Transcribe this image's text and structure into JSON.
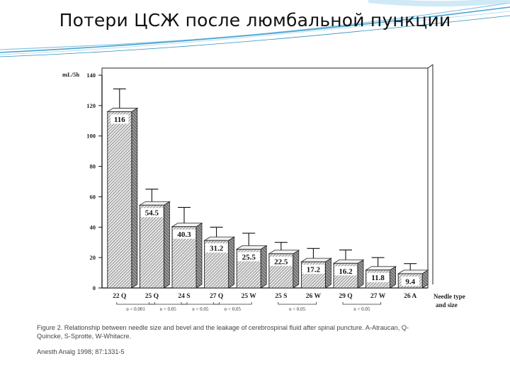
{
  "slide": {
    "title": "Потери ЦСЖ после люмбальной пункции",
    "accent_color": "#2d8fbf"
  },
  "figure": {
    "caption_line1": "Figure 2. Relationship between needle size and bevel and the leakage of cerebrospinal fluid after spinal puncture. A-Atraucan, Q-",
    "caption_line2": "Quincke, S-Sprotte, W-Whitacre.",
    "source": "Anesth Analg 1998; 87:1331-5"
  },
  "chart_data": {
    "type": "bar",
    "ylabel": "mL/5h",
    "xlabel_line1": "Needle type",
    "xlabel_line2": "and size",
    "ylim": [
      0,
      140
    ],
    "yticks": [
      0,
      20,
      40,
      60,
      80,
      100,
      120,
      140
    ],
    "categories": [
      "22 Q",
      "25 Q",
      "24 S",
      "27 Q",
      "25 W",
      "25 S",
      "26 W",
      "29 Q",
      "27 W",
      "26 A"
    ],
    "values": [
      116,
      54.5,
      40.3,
      31.2,
      25.5,
      22.5,
      17.2,
      16.2,
      11.8,
      9.4
    ],
    "value_labels": [
      "116",
      "54.5",
      "40.3",
      "31.2",
      "25.5",
      "22.5",
      "17.2",
      "16.2",
      "11.8",
      "9.4"
    ],
    "error_upper": [
      131,
      65,
      53,
      40,
      36,
      30,
      26,
      25,
      20,
      16
    ],
    "significance": [
      {
        "label": "p < 0.001",
        "from": 0,
        "to": 1,
        "row": 0
      },
      {
        "label": "p < 0.05",
        "from": 1,
        "to": 2,
        "row": 0
      },
      {
        "label": "p < 0.05",
        "from": 2,
        "to": 3,
        "row": 0
      },
      {
        "label": "p < 0.05",
        "from": 3,
        "to": 4,
        "row": 0
      },
      {
        "label": "p < 0.05",
        "from": 5,
        "to": 6,
        "row": 0
      },
      {
        "label": "p < 0.05",
        "from": 7,
        "to": 8,
        "row": 0
      },
      {
        "label": "p < 0.05",
        "from": 7,
        "to": 9,
        "row": 1
      }
    ],
    "grid": false,
    "legend": "none"
  }
}
